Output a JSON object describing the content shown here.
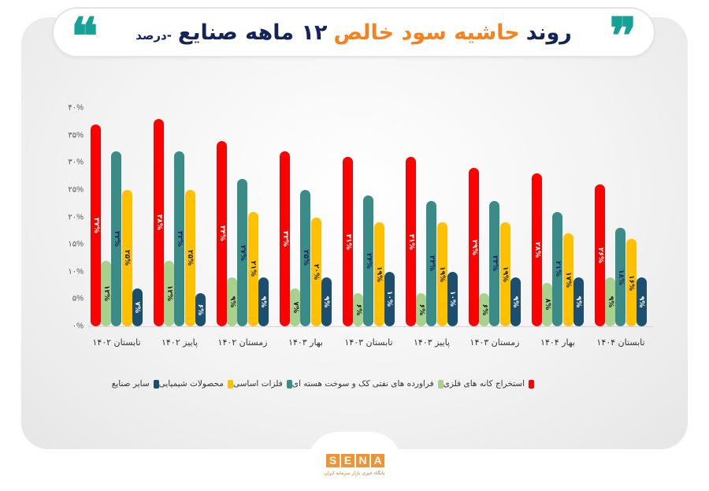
{
  "title": {
    "part1": "روند",
    "part2": "حاشیه سود خالص",
    "part3": "۱۲ ماهه صنایع",
    "suffix": "-درصد",
    "quote_open": "❞",
    "quote_close": "❝",
    "colors": {
      "navy": "#14235a",
      "orange": "#f5821f",
      "quote": "#16a196"
    }
  },
  "logo": {
    "letters": [
      "S",
      "E",
      "N",
      "A"
    ],
    "subtitle": "پایگاه خبری بازار سرمایه ایران",
    "color": "#f39233"
  },
  "chart_data": {
    "type": "bar",
    "title": "روند حاشیه سود خالص ۱۲ ماهه صنایع-درصد",
    "xlabel": "",
    "ylabel": "",
    "ylim": [
      0,
      40
    ],
    "yticks": [
      "۰%",
      "۵%",
      "۱۰%",
      "۱۵%",
      "۲۰%",
      "۲۵%",
      "۳۰%",
      "۳۵%",
      "۴۰%"
    ],
    "ytick_values": [
      0,
      5,
      10,
      15,
      20,
      25,
      30,
      35,
      40
    ],
    "grid": false,
    "legend_position": "bottom",
    "categories": [
      "تابستان ۱۴۰۲",
      "پاییز ۱۴۰۲",
      "زمستان ۱۴۰۲",
      "بهار ۱۴۰۳",
      "تابستان ۱۴۰۳",
      "پاییز ۱۴۰۳",
      "زمستان ۱۴۰۳",
      "بهار ۱۴۰۴",
      "تابستان ۱۴۰۴"
    ],
    "series": [
      {
        "name": "استخراج کانه های فلزی",
        "color": "#ff0000",
        "label_color": "#ffffff",
        "values": [
          37,
          38,
          34,
          32,
          31,
          31,
          29,
          28,
          26
        ],
        "labels": [
          "۳۷%",
          "۳۸%",
          "۳۴%",
          "۳۲%",
          "۳۱%",
          "۳۱%",
          "۲۹%",
          "۲۸%",
          "۲۶%"
        ]
      },
      {
        "name": "فراورده های نفتی کک و سوخت هسته ای",
        "color": "#a8d18d",
        "label_color": "#1a1a1a",
        "values": [
          12,
          12,
          9,
          7,
          6,
          6,
          6,
          8,
          9
        ],
        "labels": [
          "۱۲%",
          "۱۲%",
          "۹%",
          "۷%",
          "۶%",
          "۶%",
          "۶%",
          "۸%",
          "۹%"
        ]
      },
      {
        "name": "فلزات اساسی",
        "color": "#3a8c88",
        "label_color": "#14235a",
        "values": [
          32,
          32,
          27,
          25,
          24,
          23,
          23,
          21,
          18
        ],
        "labels": [
          "۳۲%",
          "۳۲%",
          "۲۷%",
          "۲۵%",
          "۲۴%",
          "۲۳%",
          "۲۳%",
          "۲۱%",
          "۱۸%"
        ]
      },
      {
        "name": "محصولات شیمیایی",
        "color": "#ffc000",
        "label_color": "#14235a",
        "values": [
          25,
          25,
          21,
          20,
          19,
          19,
          19,
          17,
          16
        ],
        "labels": [
          "۲۵%",
          "۲۵%",
          "۲۱%",
          "۲۰%",
          "۱۹%",
          "۱۹%",
          "۱۹%",
          "۱۷%",
          "۱۶%"
        ]
      },
      {
        "name": "سایر صنایع",
        "color": "#1c4e70",
        "label_color": "#ffffff",
        "values": [
          7,
          6,
          9,
          9,
          10,
          10,
          9,
          9,
          9
        ],
        "labels": [
          "۷%",
          "۶%",
          "۹%",
          "۹%",
          "۱۰%",
          "۱۰%",
          "۹%",
          "۹%",
          "۹%"
        ]
      }
    ]
  }
}
